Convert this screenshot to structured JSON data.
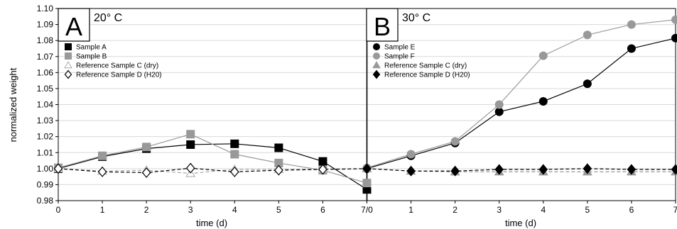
{
  "chart_data": {
    "type": "line",
    "ylabel": "normalized weight",
    "ylim": [
      0.98,
      1.1
    ],
    "y_ticks": [
      "0.98",
      "0.99",
      "1.00",
      "1.01",
      "1.02",
      "1.03",
      "1.04",
      "1.05",
      "1.06",
      "1.07",
      "1.08",
      "1.09",
      "1.10"
    ],
    "x_tick_labels": [
      "0",
      "1",
      "2",
      "3",
      "4",
      "5",
      "6",
      "7/0",
      "1",
      "2",
      "3",
      "4",
      "5",
      "6",
      "7"
    ],
    "grid": true,
    "panels": [
      {
        "letter": "A",
        "temperature": "20° C",
        "xlabel": "time (d)",
        "x": [
          0,
          1,
          2,
          3,
          4,
          5,
          6,
          7
        ],
        "legend_position": "top-left",
        "series": [
          {
            "name": "Sample A",
            "marker": "square",
            "color": "#000000",
            "fill": "#000000",
            "line": "solid",
            "values": [
              1.0,
              1.0075,
              1.0125,
              1.015,
              1.0155,
              1.013,
              1.0045,
              0.987
            ]
          },
          {
            "name": "Sample B",
            "marker": "square",
            "color": "#999999",
            "fill": "#999999",
            "line": "solid",
            "values": [
              1.0005,
              1.008,
              1.0135,
              1.0215,
              1.009,
              1.0035,
              0.999,
              0.991
            ]
          },
          {
            "name": "Reference Sample C (dry)",
            "marker": "triangle",
            "color": "#aaaaaa",
            "fill": "#ffffff",
            "line": "dashed",
            "values": [
              1.0,
              0.9985,
              0.999,
              0.997,
              0.9995,
              0.9995,
              0.9995,
              1.0
            ]
          },
          {
            "name": "Reference Sample D (H20)",
            "marker": "diamond",
            "color": "#000000",
            "fill": "#ffffff",
            "line": "dashed",
            "values": [
              1.0,
              0.998,
              0.9975,
              1.0003,
              0.998,
              0.999,
              0.9995,
              1.0
            ]
          }
        ]
      },
      {
        "letter": "B",
        "temperature": "30° C",
        "xlabel": "time (d)",
        "x": [
          0,
          1,
          2,
          3,
          4,
          5,
          6,
          7
        ],
        "legend_position": "top-left",
        "series": [
          {
            "name": "Sample E",
            "marker": "circle",
            "color": "#000000",
            "fill": "#000000",
            "line": "solid",
            "values": [
              1.0,
              1.008,
              1.016,
              1.0355,
              1.042,
              1.053,
              1.075,
              1.0815
            ]
          },
          {
            "name": "Sample F",
            "marker": "circle",
            "color": "#999999",
            "fill": "#999999",
            "line": "solid",
            "values": [
              1.0005,
              1.009,
              1.017,
              1.04,
              1.0705,
              1.0835,
              1.09,
              1.093
            ]
          },
          {
            "name": "Reference Sample C (dry)",
            "marker": "triangle",
            "color": "#999999",
            "fill": "#999999",
            "line": "dashed",
            "values": [
              1.0,
              0.9985,
              0.998,
              0.998,
              0.998,
              0.998,
              0.998,
              0.998
            ]
          },
          {
            "name": "Reference Sample D (H20)",
            "marker": "diamond",
            "color": "#000000",
            "fill": "#000000",
            "line": "dashed",
            "values": [
              1.0,
              0.9985,
              0.9985,
              0.9995,
              0.9995,
              1.0,
              0.9995,
              0.9995
            ]
          }
        ]
      }
    ]
  }
}
